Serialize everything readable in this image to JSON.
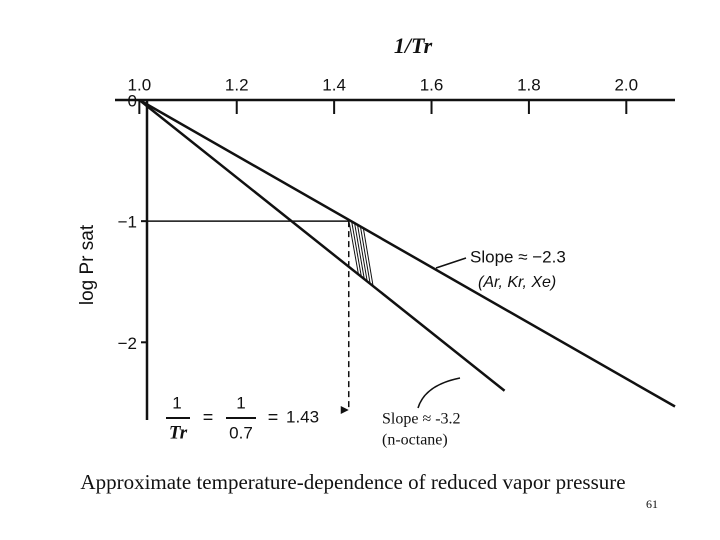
{
  "chart_data": {
    "type": "line",
    "x_label": "1/Tr",
    "y_label": "log Pr sat",
    "xlim": [
      0.95,
      2.1
    ],
    "ylim": [
      -2.6,
      0
    ],
    "xticks": [
      {
        "value": 1,
        "label": "1.0"
      },
      1.2,
      1.4,
      1.6,
      1.8,
      {
        "value": 2,
        "label": "2.0"
      }
    ],
    "yticks": [
      0,
      {
        "value": -1,
        "label": "−1"
      },
      {
        "value": -2,
        "label": "−2"
      }
    ],
    "series": [
      {
        "name": "Slope ≈ −2.3",
        "subtitle": "(Ar, Kr, Xe)",
        "color": "#111111",
        "x": [
          1.0,
          2.1
        ],
        "values": [
          0,
          -2.53
        ]
      },
      {
        "name": "Slope ≈ -3.2",
        "subtitle": "(n-octane)",
        "color": "#111111",
        "x": [
          1.0,
          1.75
        ],
        "values": [
          0,
          -2.4
        ]
      }
    ],
    "formula": {
      "num": "1",
      "den1": "Tr",
      "den2": "0.7",
      "equals": "=",
      "result": {
        "value": 1.43,
        "label": "1.43"
      }
    },
    "reference_y": -1
  },
  "caption": "Approximate temperature-dependence of reduced vapor pressure",
  "page_number": "61"
}
